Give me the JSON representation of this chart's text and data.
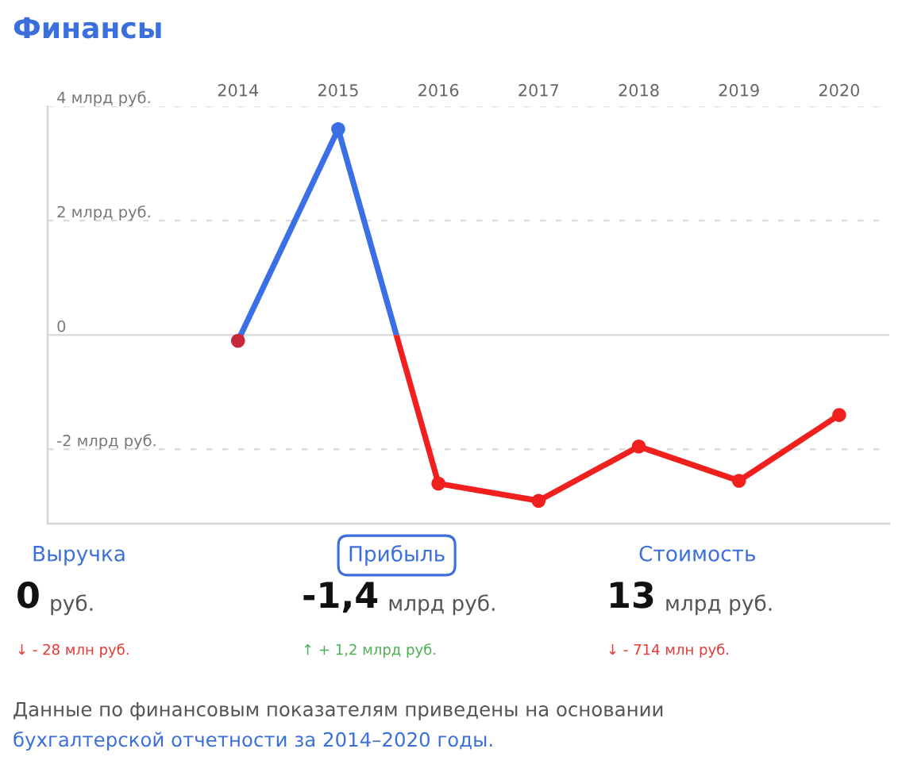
{
  "chart_data": {
    "type": "line",
    "title": "Финансы",
    "categories": [
      "2014",
      "2015",
      "2016",
      "2017",
      "2018",
      "2019",
      "2020"
    ],
    "series": [
      {
        "color": "#f0201e",
        "colors": [
          "#c8283c",
          "#3b6fe6",
          "#f0201e",
          "#f0201e",
          "#f0201e",
          "#f0201e",
          "#f0201e"
        ],
        "values": [
          -0.1,
          3.6,
          -2.6,
          -2.9,
          -1.95,
          -2.55,
          -1.4
        ]
      }
    ],
    "ylim": [
      -3.3,
      4
    ],
    "yticks": [
      {
        "value": -2,
        "label": "-2 млрд руб."
      },
      0,
      {
        "value": 2,
        "label": "2 млрд руб."
      },
      {
        "value": 4,
        "label": "4 млрд руб."
      }
    ],
    "grid": "y",
    "marker": "circle",
    "line_style": "solid",
    "annotations": [
      "Выручка",
      "0",
      "руб.",
      "↓ - 28 млн руб.",
      "Прибыль",
      "-1,4",
      "млрд руб.",
      "↑ + 1,2 млрд руб.",
      "Стоимость",
      "13",
      "млрд руб.",
      "↓ - 714 млн руб.",
      "Данные по финансовым показателям приведены на основании",
      "бухгалтерской отчетности за 2014–2020 годы."
    ]
  }
}
